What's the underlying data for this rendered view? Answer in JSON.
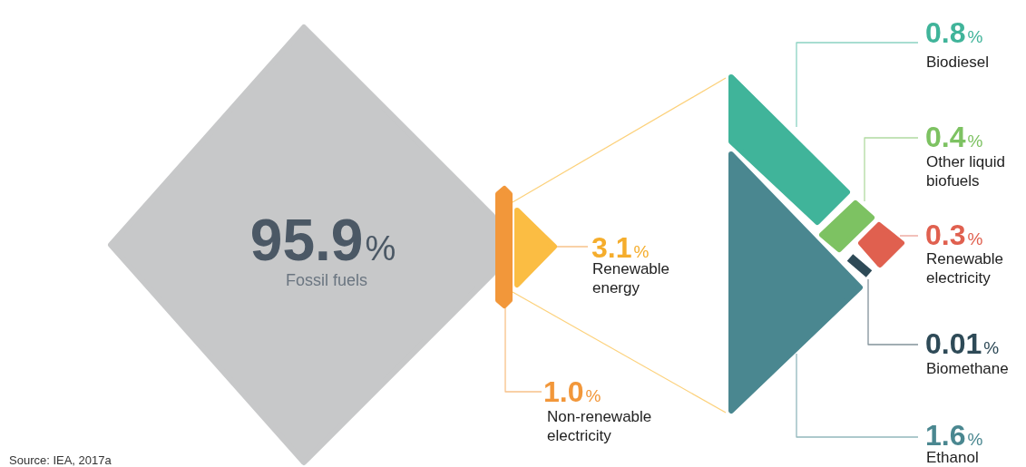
{
  "chart_data": {
    "type": "other",
    "categories": [
      "Fossil fuels",
      "Non-renewable electricity",
      "Renewable energy",
      "Biodiesel",
      "Other liquid biofuels",
      "Renewable electricity",
      "Biomethane",
      "Ethanol"
    ],
    "values": [
      95.9,
      1.0,
      3.1,
      0.8,
      0.4,
      0.3,
      0.01,
      1.6
    ],
    "value_labels": [
      "95.9%",
      "1.0%",
      "3.1%",
      "0.8%",
      "0.4%",
      "0.3%",
      "0.01%",
      "1.6%"
    ],
    "colors": [
      "#c7c8c9",
      "#f2973a",
      "#fbbd43",
      "#40b49a",
      "#7dc262",
      "#e0604f",
      "#2e4a57",
      "#4a8790"
    ],
    "annotations": [
      "Source: IEA, 2017a"
    ]
  }
}
